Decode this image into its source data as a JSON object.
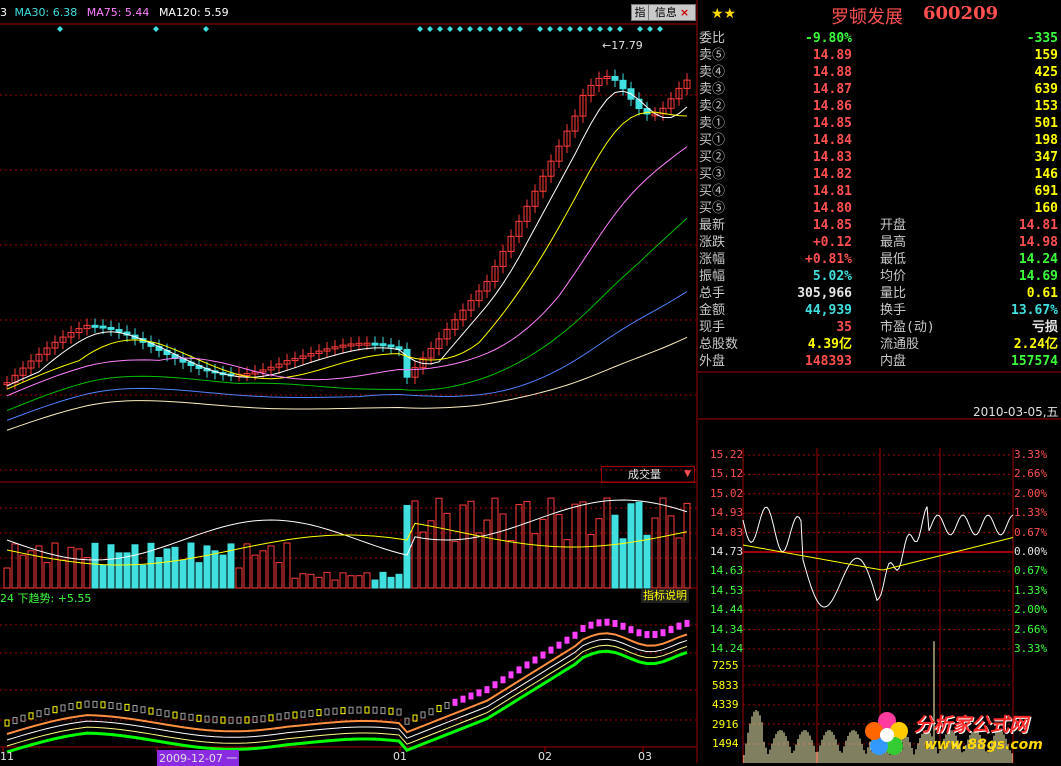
{
  "colors": {
    "up": "#ff3c3c",
    "down": "#40e0e0",
    "ma_white": "#ffffff",
    "ma_yellow": "#ffff00",
    "ma_pink": "#ff80ff",
    "ma_green": "#00c000",
    "ma_blue": "#5080ff",
    "ma_cream": "#fff0c0",
    "grid_red": "#a00000",
    "bg": "#000000"
  },
  "main_chart": {
    "ma_legend": {
      "prefix": "3",
      "ma30": "MA30: 6.38",
      "ma75": "MA75: 5.44",
      "ma120": "MA120: 5.59"
    },
    "high_marker": "17.79",
    "toolbar": {
      "btn_zhi": "指",
      "btn_info": "信息"
    },
    "volume_label": "成交量",
    "indicator_label": "24  下趋势: +5.55",
    "indicator_btn": "指标说明",
    "x_labels": [
      "11",
      "2009-12-07 一",
      "01",
      "02",
      "03"
    ]
  },
  "quote": {
    "stars": "★★",
    "name": "罗顿发展",
    "code": "600209",
    "weibi": {
      "label": "委比",
      "pct": "-9.80%",
      "diff": "-335"
    },
    "asks": [
      {
        "label": "卖⑤",
        "price": "14.89",
        "vol": "159"
      },
      {
        "label": "卖④",
        "price": "14.88",
        "vol": "425"
      },
      {
        "label": "卖③",
        "price": "14.87",
        "vol": "639"
      },
      {
        "label": "卖②",
        "price": "14.86",
        "vol": "153"
      },
      {
        "label": "卖①",
        "price": "14.85",
        "vol": "501"
      }
    ],
    "bids": [
      {
        "label": "买①",
        "price": "14.84",
        "vol": "198"
      },
      {
        "label": "买②",
        "price": "14.83",
        "vol": "347"
      },
      {
        "label": "买③",
        "price": "14.82",
        "vol": "146"
      },
      {
        "label": "买④",
        "price": "14.81",
        "vol": "691"
      },
      {
        "label": "买⑤",
        "price": "14.80",
        "vol": "160"
      }
    ],
    "stats": [
      {
        "l1": "最新",
        "v1": "14.85",
        "c1": "red",
        "l2": "开盘",
        "v2": "14.81",
        "c2": "red"
      },
      {
        "l1": "涨跌",
        "v1": "+0.12",
        "c1": "red",
        "l2": "最高",
        "v2": "14.98",
        "c2": "red"
      },
      {
        "l1": "涨幅",
        "v1": "+0.81%",
        "c1": "red",
        "l2": "最低",
        "v2": "14.24",
        "c2": "grn"
      },
      {
        "l1": "振幅",
        "v1": "5.02%",
        "c1": "cyn",
        "l2": "均价",
        "v2": "14.69",
        "c2": "grn"
      },
      {
        "l1": "总手",
        "v1": "305,966",
        "c1": "wht",
        "l2": "量比",
        "v2": "0.61",
        "c2": "yel"
      },
      {
        "l1": "金额",
        "v1": "44,939",
        "c1": "cyn",
        "l2": "换手",
        "v2": "13.67%",
        "c2": "cyn"
      },
      {
        "l1": "现手",
        "v1": "35",
        "c1": "red",
        "l2": "市盈(动)",
        "v2": "亏损",
        "c2": "wht"
      },
      {
        "l1": "总股数",
        "v1": "4.39亿",
        "c1": "yel",
        "l2": "流通股",
        "v2": "2.24亿",
        "c2": "yel"
      }
    ],
    "outer": {
      "label": "外盘",
      "value": "148393"
    },
    "inner": {
      "label": "内盘",
      "value": "157574"
    }
  },
  "intraday": {
    "date": "2010-03-05,五",
    "price_labels": [
      "15.22",
      "15.12",
      "15.02",
      "14.93",
      "14.83",
      "14.73",
      "14.63",
      "14.53",
      "14.44",
      "14.34",
      "14.24"
    ],
    "pct_labels": [
      "3.33%",
      "2.66%",
      "2.00%",
      "1.33%",
      "0.67%",
      "0.00%",
      "0.67%",
      "1.33%",
      "2.00%",
      "2.66%",
      "3.33%"
    ],
    "vol_labels": [
      "7255",
      "5833",
      "4339",
      "2916",
      "1494"
    ],
    "prev_close": 14.73
  },
  "watermark": {
    "text": "分析家公式网",
    "url": "www.88gs.com"
  }
}
